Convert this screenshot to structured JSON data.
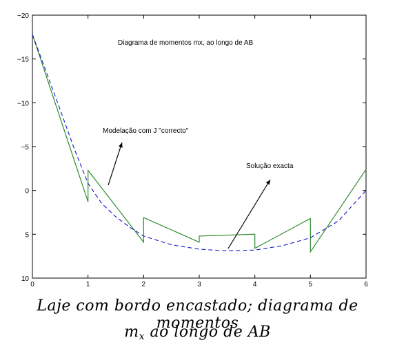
{
  "chart_data": {
    "type": "line",
    "title": "Diagrama de momentos mx, ao longo de AB",
    "xlim": [
      0,
      6
    ],
    "ylim": [
      -20,
      10
    ],
    "y_axis_inverted": true,
    "grid": false,
    "x_ticks": [
      "0",
      "1",
      "2",
      "3",
      "4",
      "5",
      "6"
    ],
    "y_ticks": [
      "−20",
      "−15",
      "−10",
      "−5",
      "0",
      "5",
      "10"
    ],
    "x_tick_values": [
      0,
      1,
      2,
      3,
      4,
      5,
      6
    ],
    "y_tick_values": [
      -20,
      -15,
      -10,
      -5,
      0,
      5,
      10
    ],
    "series": [
      {
        "name": "Modelação com J \"correcto\"",
        "color": "#2e8b2e",
        "style": "solid",
        "x": [
          0,
          1,
          1,
          2,
          2,
          3,
          3,
          4,
          4,
          5,
          5,
          6
        ],
        "y": [
          -17.8,
          1.3,
          -2.3,
          5.9,
          3.1,
          5.9,
          5.2,
          5.0,
          6.6,
          3.2,
          7.0,
          -2.4
        ]
      },
      {
        "name": "Solução exacta",
        "color": "#2222cc",
        "style": "dashed",
        "x": [
          0,
          0.25,
          0.5,
          0.75,
          1.0,
          1.25,
          1.5,
          1.75,
          2.0,
          2.5,
          3.0,
          3.5,
          4.0,
          4.5,
          5.0,
          5.5,
          6.0
        ],
        "y": [
          -17.8,
          -13.5,
          -9.2,
          -4.8,
          -0.8,
          1.5,
          3.0,
          4.2,
          5.2,
          6.2,
          6.7,
          6.9,
          6.8,
          6.3,
          5.4,
          3.5,
          0.0
        ]
      }
    ],
    "annotations": [
      {
        "text": "Modelação com J \"correcto\"",
        "x": 1.3,
        "y": -7.0
      },
      {
        "text": "Solução exacta",
        "x": 3.95,
        "y": -2.5
      }
    ]
  },
  "caption": {
    "line1": "Laje com bordo encastado; diagrama de momentos",
    "line2_m": "m",
    "line2_sub": "x",
    "line2_rest": " ao longo de AB"
  }
}
